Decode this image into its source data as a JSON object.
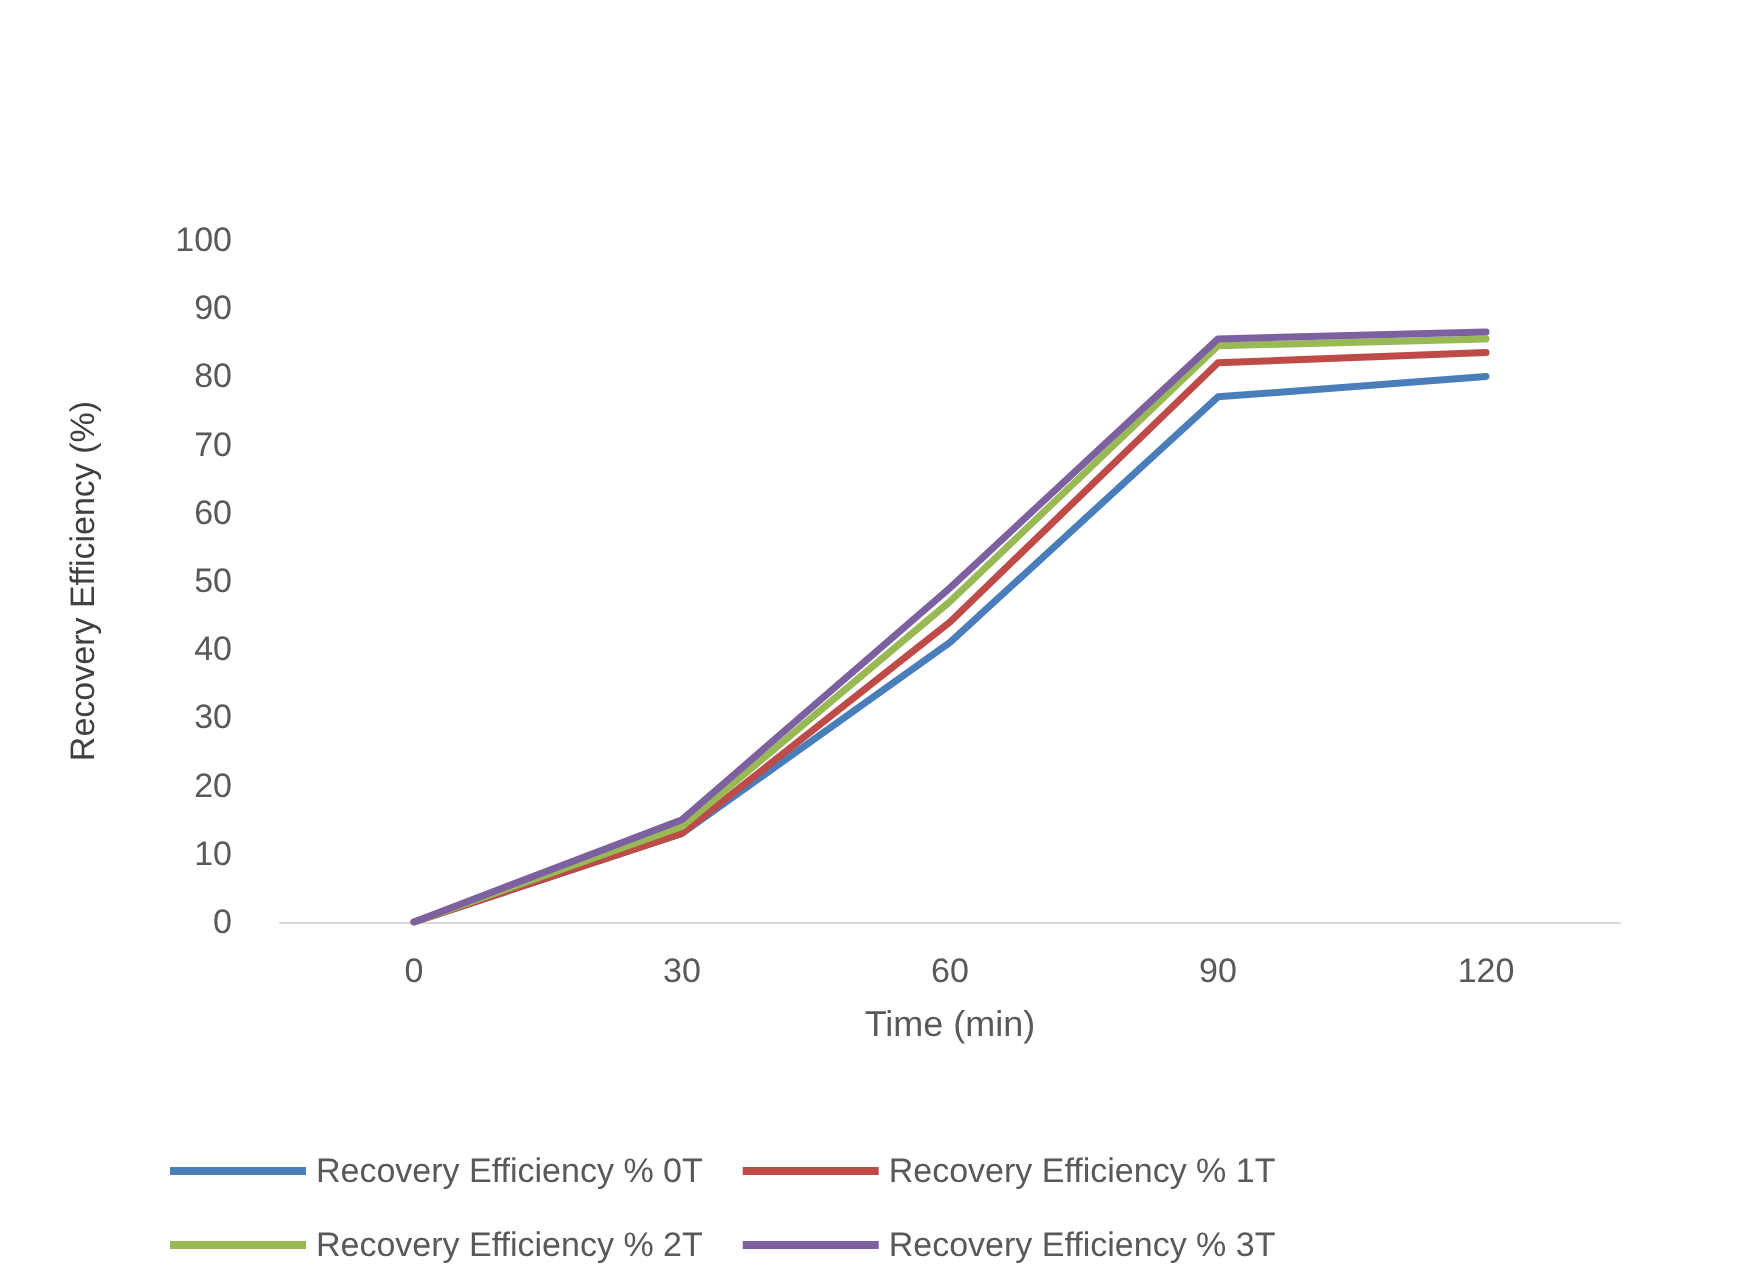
{
  "chart_data": {
    "type": "line",
    "xlabel": "Time (min)",
    "ylabel": "Recovery Efficiency (%)",
    "categories": [
      "0",
      "30",
      "60",
      "90",
      "120"
    ],
    "series": [
      {
        "name": "Recovery Efficiency % 0T",
        "color": "#4a7ebb",
        "values": [
          0,
          13,
          41,
          77,
          80
        ]
      },
      {
        "name": "Recovery Efficiency % 1T",
        "color": "#be4b48",
        "values": [
          0,
          13,
          44,
          82,
          83.5
        ]
      },
      {
        "name": "Recovery Efficiency % 2T",
        "color": "#98b954",
        "values": [
          0,
          14,
          47,
          84.5,
          85.5
        ]
      },
      {
        "name": "Recovery Efficiency % 3T",
        "color": "#7d60a0",
        "values": [
          0,
          15,
          49,
          85.5,
          86.5
        ]
      }
    ],
    "ylim": [
      0,
      100
    ],
    "yticks": [
      0,
      10,
      20,
      30,
      40,
      50,
      60,
      70,
      80,
      90,
      100
    ],
    "grid": false,
    "legend": "bottom",
    "marker": "none",
    "line_style": "solid"
  }
}
